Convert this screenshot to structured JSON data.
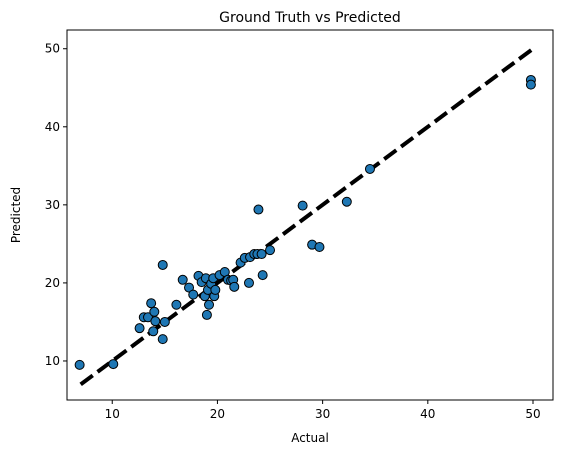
{
  "chart_data": {
    "type": "scatter",
    "title": "Ground Truth vs Predicted",
    "x_label": "Actual",
    "y_label": "Predicted",
    "color": "#1f77b4",
    "edgecolor": "#000000",
    "x": [
      6.9,
      10.1,
      12.6,
      13.0,
      13.4,
      13.7,
      13.9,
      14.0,
      14.1,
      14.8,
      14.8,
      15.0,
      16.1,
      16.7,
      17.3,
      17.7,
      18.2,
      18.5,
      18.8,
      18.9,
      19.0,
      19.1,
      19.2,
      19.4,
      19.6,
      19.7,
      19.8,
      20.2,
      20.7,
      21.0,
      21.3,
      21.5,
      21.6,
      22.2,
      22.6,
      23.0,
      23.1,
      23.5,
      23.8,
      23.9,
      24.2,
      24.3,
      25.0,
      28.1,
      29.0,
      29.7,
      32.3,
      34.5,
      49.8,
      49.8
    ],
    "y": [
      9.5,
      9.6,
      14.2,
      15.6,
      15.6,
      17.4,
      13.8,
      16.3,
      15.1,
      22.3,
      12.8,
      15.0,
      17.2,
      20.4,
      19.4,
      18.5,
      20.9,
      20.1,
      18.3,
      20.6,
      15.9,
      19.1,
      17.2,
      19.9,
      20.6,
      18.3,
      19.1,
      21.0,
      21.4,
      20.4,
      20.3,
      20.4,
      19.5,
      22.6,
      23.2,
      20.0,
      23.3,
      23.7,
      23.7,
      29.4,
      23.7,
      21.0,
      24.2,
      29.9,
      24.9,
      24.6,
      30.4,
      34.6,
      46.0,
      45.4
    ],
    "line": {
      "x": [
        7,
        50
      ],
      "y": [
        7,
        50
      ],
      "color": "#000000"
    },
    "xlim": [
      5.7,
      51.9
    ],
    "ylim": [
      5.0,
      52.4
    ],
    "xticks": [
      10,
      20,
      30,
      40,
      50
    ],
    "yticks": [
      10,
      20,
      30,
      40,
      50
    ],
    "grid": false
  }
}
